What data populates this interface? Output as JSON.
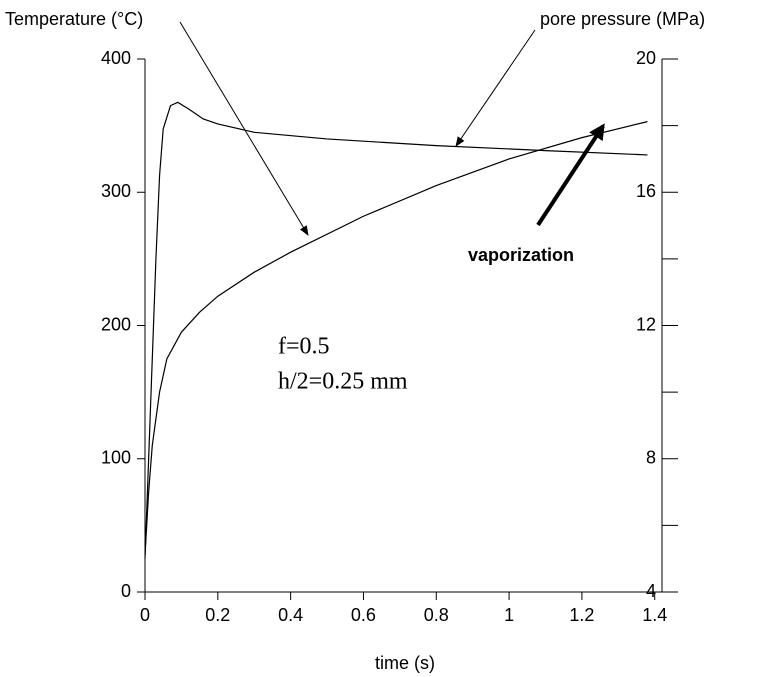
{
  "chart_data": {
    "type": "line",
    "x_label": "time (s)",
    "y_label": "Temperature (°C)",
    "y2_label": "pore pressure (MPa)",
    "annotations": [
      "vaporization",
      "f=0.5",
      "h/2=0.25 mm"
    ],
    "xlim": [
      0,
      1.42
    ],
    "xticks": [
      0,
      0.2,
      0.4,
      0.6,
      0.8,
      1,
      1.2,
      1.4
    ],
    "ylim": [
      0,
      400
    ],
    "yticks": [
      0,
      100,
      200,
      300,
      400
    ],
    "y2lim": [
      4,
      20
    ],
    "y2ticks": [
      4,
      8,
      12,
      16,
      20
    ],
    "y2_minor_ticks": [
      6,
      10,
      14,
      18
    ],
    "series": [
      {
        "name": "Temperature",
        "color": "#000000",
        "x": [
          0,
          0.01,
          0.02,
          0.04,
          0.06,
          0.1,
          0.15,
          0.2,
          0.3,
          0.4,
          0.6,
          0.8,
          1.0,
          1.2,
          1.38
        ],
        "values": [
          28,
          75,
          110,
          150,
          175,
          195,
          210,
          222,
          240,
          255,
          282,
          305,
          325,
          341,
          353
        ]
      },
      {
        "name": "pore pressure",
        "color": "#000000",
        "axis": "y2",
        "x": [
          0,
          0.01,
          0.02,
          0.03,
          0.04,
          0.05,
          0.07,
          0.09,
          0.12,
          0.16,
          0.2,
          0.3,
          0.5,
          0.8,
          1.1,
          1.38
        ],
        "values": [
          5,
          8,
          11,
          14,
          16.5,
          17.9,
          18.6,
          18.7,
          18.5,
          18.2,
          18.05,
          17.8,
          17.6,
          17.4,
          17.25,
          17.12
        ]
      }
    ]
  }
}
